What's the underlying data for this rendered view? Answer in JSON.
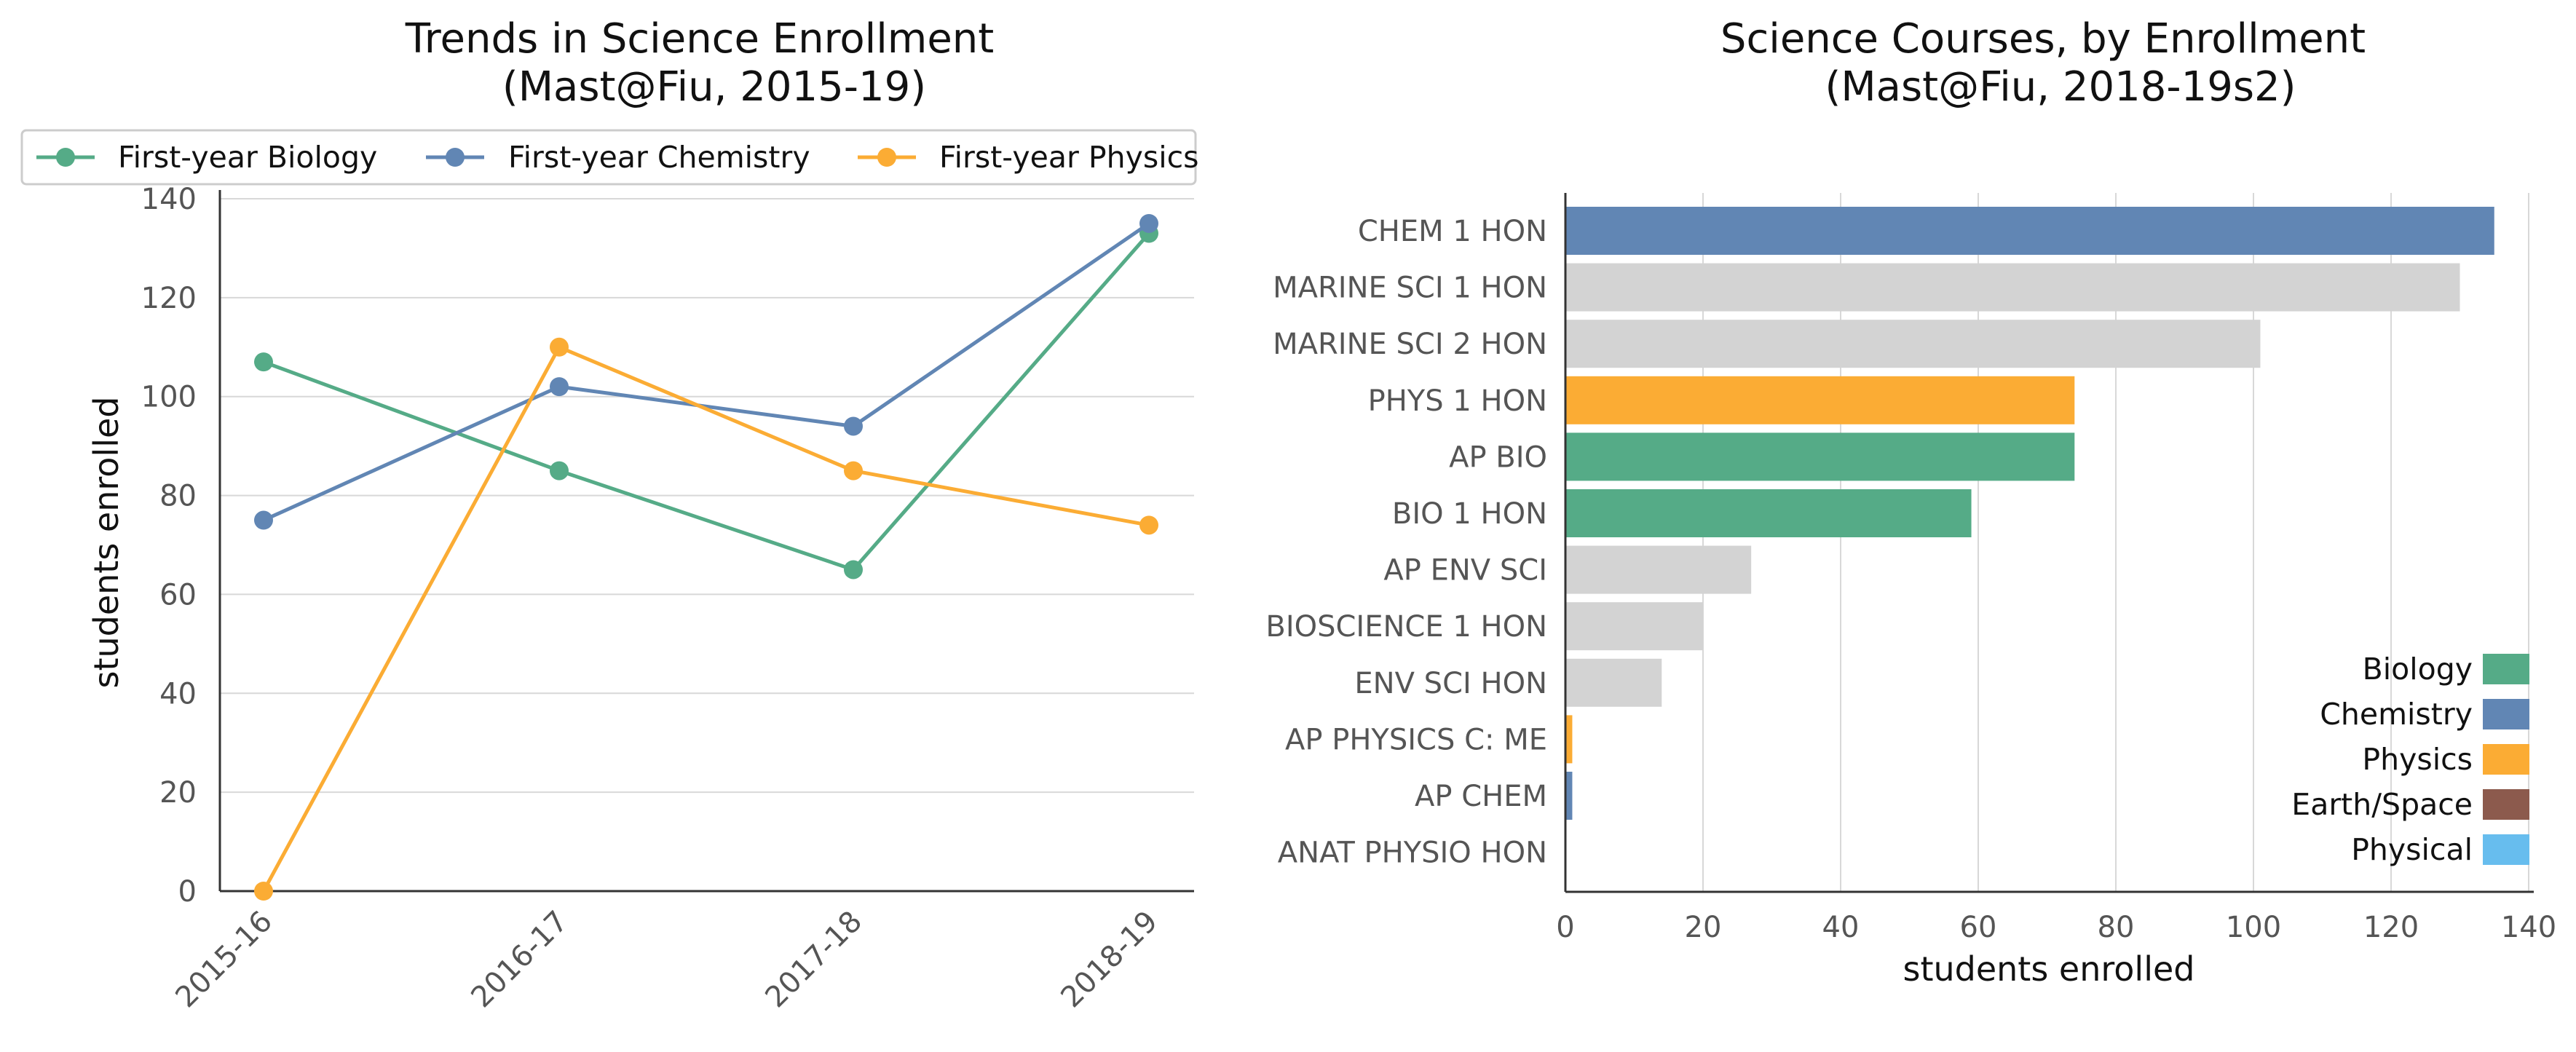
{
  "chart_data": [
    {
      "type": "line",
      "title": "Trends in Science Enrollment",
      "subtitle": "(Mast@Fiu, 2015-19)",
      "xlabel": "",
      "ylabel": "students enrolled",
      "categories": [
        "2015-16",
        "2016-17",
        "2017-18",
        "2018-19"
      ],
      "ylim": [
        0,
        140
      ],
      "yticks": [
        "0",
        "20",
        "40",
        "60",
        "80",
        "100",
        "120",
        "140"
      ],
      "grid": "horizontal",
      "legend_position": "top",
      "series": [
        {
          "name": "First-year Biology",
          "color": "#55ab87",
          "values": [
            107,
            85,
            65,
            133
          ]
        },
        {
          "name": "First-year Chemistry",
          "color": "#6186b4",
          "values": [
            75,
            102,
            94,
            135
          ]
        },
        {
          "name": "First-year Physics",
          "color": "#fbac34",
          "values": [
            0,
            110,
            85,
            74
          ]
        }
      ]
    },
    {
      "type": "bar",
      "orientation": "horizontal",
      "title": "Science Courses, by Enrollment",
      "subtitle": "(Mast@Fiu, 2018-19s2)",
      "xlabel": "students enrolled",
      "ylabel": "",
      "xlim": [
        0,
        140
      ],
      "xticks": [
        "0",
        "20",
        "40",
        "60",
        "80",
        "100",
        "120",
        "140"
      ],
      "grid": "vertical",
      "legend_position": "bottom-right",
      "bars": [
        {
          "label": "CHEM 1 HON",
          "value": 135,
          "category": "Chemistry"
        },
        {
          "label": "MARINE SCI 1 HON",
          "value": 130,
          "category": "Other"
        },
        {
          "label": "MARINE SCI 2 HON",
          "value": 101,
          "category": "Other"
        },
        {
          "label": "PHYS 1 HON",
          "value": 74,
          "category": "Physics"
        },
        {
          "label": "AP BIO",
          "value": 74,
          "category": "Biology"
        },
        {
          "label": "BIO 1 HON",
          "value": 59,
          "category": "Biology"
        },
        {
          "label": "AP ENV SCI",
          "value": 27,
          "category": "Other"
        },
        {
          "label": "BIOSCIENCE 1 HON",
          "value": 20,
          "category": "Other"
        },
        {
          "label": "ENV SCI HON",
          "value": 14,
          "category": "Other"
        },
        {
          "label": "AP PHYSICS C: ME",
          "value": 1,
          "category": "Physics"
        },
        {
          "label": "AP CHEM",
          "value": 1,
          "category": "Chemistry"
        },
        {
          "label": "ANAT PHYSIO HON",
          "value": 0,
          "category": "Other"
        }
      ],
      "category_colors": {
        "Biology": "#55ab87",
        "Chemistry": "#6186b4",
        "Physics": "#fbac34",
        "Earth/Space": "#8c5a4d",
        "Physical": "#67bdee",
        "Other": "#d3d3d3"
      },
      "legend": [
        "Biology",
        "Chemistry",
        "Physics",
        "Earth/Space",
        "Physical"
      ]
    }
  ]
}
